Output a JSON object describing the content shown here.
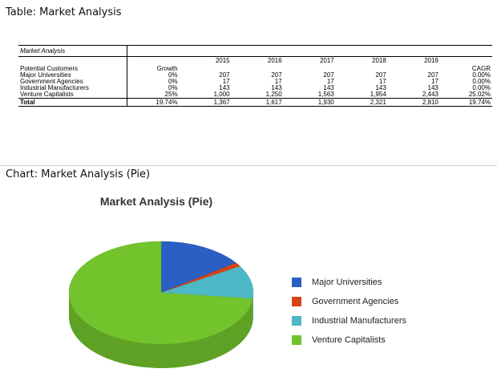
{
  "sections": {
    "table_title": "Table: Market Analysis",
    "chart_title": "Chart: Market Analysis (Pie)"
  },
  "table": {
    "title": "Market Analysis",
    "years": [
      "2015",
      "2016",
      "2017",
      "2018",
      "2019"
    ],
    "customers_label": "Potential Customers",
    "growth_label": "Growth",
    "cagr_label": "CAGR",
    "rows": [
      {
        "name": "Major Universities",
        "growth": "0%",
        "values": [
          "207",
          "207",
          "207",
          "207",
          "207"
        ],
        "cagr": "0.00%"
      },
      {
        "name": "Government Agencies",
        "growth": "0%",
        "values": [
          "17",
          "17",
          "17",
          "17",
          "17"
        ],
        "cagr": "0.00%"
      },
      {
        "name": "Industrial Manufacturers",
        "growth": "0%",
        "values": [
          "143",
          "143",
          "143",
          "143",
          "143"
        ],
        "cagr": "0.00%"
      },
      {
        "name": "Venture Capitalists",
        "growth": "25%",
        "values": [
          "1,000",
          "1,250",
          "1,563",
          "1,954",
          "2,443"
        ],
        "cagr": "25.02%"
      }
    ],
    "total": {
      "name": "Total",
      "growth": "19.74%",
      "values": [
        "1,367",
        "1,617",
        "1,930",
        "2,321",
        "2,810"
      ],
      "cagr": "19.74%"
    }
  },
  "chart_data": {
    "type": "pie",
    "title": "Market Analysis (Pie)",
    "legend_position": "right",
    "slices": [
      {
        "label": "Major Universities",
        "value": 207,
        "color": "#2a5fc3"
      },
      {
        "label": "Government Agencies",
        "value": 17,
        "color": "#d84315"
      },
      {
        "label": "Industrial Manufacturers",
        "value": 143,
        "color": "#4db8c8"
      },
      {
        "label": "Venture Capitalists",
        "value": 1000,
        "color": "#73c42c"
      }
    ]
  }
}
